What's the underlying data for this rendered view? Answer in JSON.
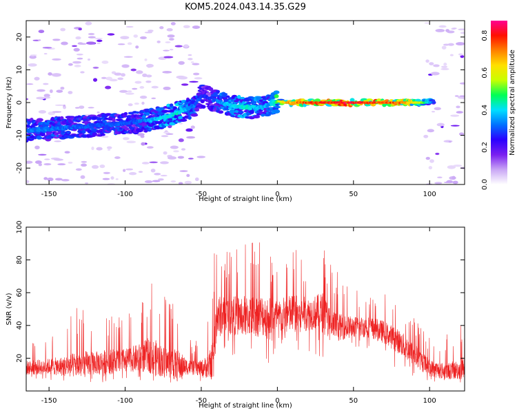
{
  "title": "KOM5.2024.043.14.35.G29",
  "chart_data": [
    {
      "type": "heatmap",
      "xlabel": "Height of straight line (km)",
      "ylabel": "Frequency (Hz)",
      "xlim": [
        -165,
        123
      ],
      "ylim": [
        -25,
        25
      ],
      "xticks": [
        -150,
        -100,
        -50,
        0,
        50,
        100
      ],
      "yticks": [
        -20,
        -10,
        0,
        10,
        20
      ],
      "colorbar": {
        "label": "Normalized spectral amplitude",
        "range": [
          0,
          0.88
        ],
        "ticks": [
          0.0,
          0.2,
          0.4,
          0.6,
          0.8
        ],
        "colormap": [
          "#ffffff",
          "#c9a6f5",
          "#7a1ff0",
          "#2b00ff",
          "#0070ff",
          "#00e0ff",
          "#00ff55",
          "#c8ff00",
          "#ffe000",
          "#ff8000",
          "#ff1000",
          "#ff0090"
        ]
      },
      "ridge": {
        "x": [
          -165,
          -150,
          -135,
          -120,
          -105,
          -95,
          -85,
          -75,
          -65,
          -55,
          -50,
          -45,
          -40,
          -30,
          -20,
          -10,
          -5,
          0,
          5,
          15,
          25,
          40,
          60,
          80,
          95,
          103
        ],
        "y": [
          -8.5,
          -8,
          -7.5,
          -7,
          -6.5,
          -6,
          -5.5,
          -4.5,
          -3,
          -1,
          2,
          1.5,
          0.5,
          -1,
          -1.5,
          -1.5,
          -0.5,
          0.5,
          0,
          0,
          0,
          0,
          0,
          0,
          0,
          0
        ],
        "amplitude": [
          0.35,
          0.35,
          0.33,
          0.32,
          0.33,
          0.3,
          0.38,
          0.42,
          0.45,
          0.35,
          0.3,
          0.28,
          0.35,
          0.42,
          0.45,
          0.4,
          0.38,
          0.55,
          0.72,
          0.8,
          0.85,
          0.88,
          0.85,
          0.8,
          0.6,
          0.3
        ]
      },
      "noise_regions": [
        {
          "x": [
            -165,
            -50
          ],
          "y": [
            -25,
            25
          ]
        },
        {
          "x": [
            97,
            123
          ],
          "y": [
            -25,
            25
          ]
        }
      ]
    },
    {
      "type": "line",
      "xlabel": "Height of straight line (km)",
      "ylabel": "SNR (v/v)",
      "xlim": [
        -165,
        123
      ],
      "ylim": [
        0,
        100
      ],
      "xticks": [
        -150,
        -100,
        -50,
        0,
        50,
        100
      ],
      "yticks": [
        20,
        40,
        60,
        80,
        100
      ],
      "color": "#ee2222",
      "series": [
        {
          "x": [
            -165,
            -150,
            -140,
            -130,
            -120,
            -110,
            -100,
            -90,
            -85,
            -80,
            -75,
            -70,
            -65,
            -60,
            -55,
            -50,
            -45,
            -42,
            -40,
            -35,
            -30,
            -20,
            -10,
            0,
            10,
            20,
            25,
            30,
            35,
            40,
            50,
            60,
            70,
            80,
            90,
            100,
            110,
            120,
            123
          ],
          "envelope_min": [
            5,
            5,
            5,
            5,
            5,
            5,
            5,
            5,
            5,
            5,
            5,
            5,
            5,
            5,
            5,
            5,
            5,
            5,
            25,
            25,
            20,
            20,
            18,
            15,
            20,
            20,
            20,
            20,
            22,
            25,
            25,
            25,
            20,
            12,
            5,
            5,
            5,
            5,
            5
          ],
          "envelope_mean": [
            14,
            15,
            15,
            16,
            17,
            18,
            19,
            20,
            22,
            20,
            18,
            17,
            15,
            15,
            14,
            14,
            15,
            20,
            45,
            46,
            46,
            46,
            46,
            45,
            47,
            47,
            48,
            48,
            40,
            39,
            39,
            39,
            36,
            30,
            22,
            14,
            12,
            13,
            15
          ],
          "envelope_max": [
            30,
            33,
            40,
            55,
            45,
            50,
            44,
            57,
            64,
            69,
            58,
            58,
            62,
            34,
            30,
            32,
            50,
            82,
            100,
            93,
            88,
            92,
            93,
            78,
            90,
            78,
            80,
            92,
            82,
            72,
            62,
            62,
            60,
            55,
            46,
            35,
            34,
            40,
            45
          ]
        }
      ]
    }
  ]
}
